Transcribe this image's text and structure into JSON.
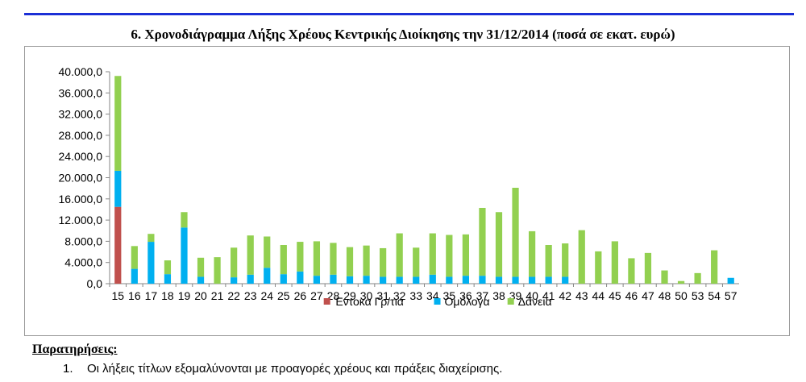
{
  "header": {
    "title": "6. Χρονοδιάγραμμα Λήξης Χρέους Κεντρικής Διοίκησης την 31/12/2014 (ποσά σε εκατ. ευρώ)"
  },
  "notes": {
    "heading": "Παρατηρήσεις:",
    "items": [
      {
        "number": "1.",
        "text": "Οι λήξεις τίτλων εξομαλύνονται με προαγορές  χρέους και πράξεις διαχείρισης."
      }
    ]
  },
  "chart_data": {
    "type": "bar",
    "stacked": true,
    "categories": [
      "15",
      "16",
      "17",
      "18",
      "19",
      "20",
      "21",
      "22",
      "23",
      "24",
      "25",
      "26",
      "27",
      "28",
      "29",
      "30",
      "31",
      "32",
      "33",
      "34",
      "35",
      "36",
      "37",
      "38",
      "39",
      "40",
      "41",
      "42",
      "43",
      "44",
      "45",
      "46",
      "47",
      "48",
      "50",
      "53",
      "54",
      "57"
    ],
    "series": [
      {
        "name": "Έντοκα Γρ/τια",
        "color": "#c0504d",
        "values": [
          14500,
          0,
          0,
          0,
          0,
          0,
          0,
          0,
          0,
          0,
          0,
          0,
          0,
          0,
          0,
          0,
          0,
          0,
          0,
          0,
          0,
          0,
          0,
          0,
          0,
          0,
          0,
          0,
          0,
          0,
          0,
          0,
          0,
          0,
          0,
          0,
          0,
          0
        ]
      },
      {
        "name": "Ομόλογα",
        "color": "#00b0f0",
        "values": [
          6800,
          2800,
          7900,
          1800,
          10600,
          1300,
          0,
          1200,
          1700,
          3000,
          1800,
          2300,
          1500,
          1700,
          1400,
          1500,
          1300,
          1300,
          1300,
          1700,
          1300,
          1500,
          1500,
          1300,
          1300,
          1300,
          1300,
          1300,
          0,
          0,
          0,
          0,
          0,
          0,
          0,
          0,
          0,
          1100
        ]
      },
      {
        "name": "Δάνεια",
        "color": "#92d050",
        "values": [
          17900,
          4300,
          1500,
          2600,
          2900,
          3600,
          5000,
          5600,
          7400,
          5900,
          5500,
          5600,
          6500,
          6000,
          5500,
          5700,
          5400,
          8200,
          5500,
          7800,
          7900,
          7800,
          12800,
          12200,
          16800,
          8600,
          6000,
          6300,
          10100,
          6100,
          8000,
          4800,
          5800,
          2500,
          500,
          2000,
          6300,
          0
        ]
      }
    ],
    "ylim": [
      0,
      40000
    ],
    "yticks": [
      "0,0",
      "4.000,0",
      "8.000,0",
      "12.000,0",
      "16.000,0",
      "20.000,0",
      "24.000,0",
      "28.000,0",
      "32.000,0",
      "36.000,0",
      "40.000,0"
    ],
    "grid": false,
    "legend_position": "bottom"
  }
}
